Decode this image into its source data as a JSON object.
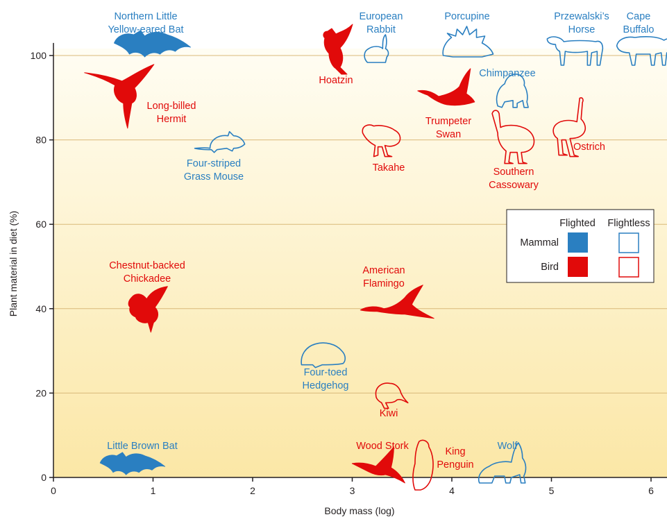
{
  "chart_data": {
    "type": "scatter",
    "title": "",
    "xlabel": "Body mass (log)",
    "ylabel": "Plant material in diet (%)",
    "xlim": [
      0,
      6.15
    ],
    "ylim": [
      0,
      102
    ],
    "x_ticks": [
      0,
      1,
      2,
      3,
      4,
      5,
      6
    ],
    "y_ticks": [
      0,
      20,
      40,
      60,
      80,
      100
    ],
    "grid": "horizontal",
    "background": "gradient cream (top) to light yellow (bottom)",
    "legend": {
      "placement": "right",
      "columns": [
        "Flighted",
        "Flightless"
      ],
      "rows": [
        "Mammal",
        "Bird"
      ]
    },
    "colors": {
      "mammal": "#2a7fc1",
      "bird": "#e10a0a"
    },
    "points": [
      {
        "label": "Northern Little Yellow-eared Bat",
        "x": 1.0,
        "y": 100,
        "group": "mammal",
        "flight": "flighted",
        "icon": "bat-icon"
      },
      {
        "label": "Long-billed Hermit",
        "x": 0.8,
        "y": 90,
        "group": "bird",
        "flight": "flighted",
        "icon": "hummingbird-icon"
      },
      {
        "label": "Four-striped Grass Mouse",
        "x": 1.6,
        "y": 79,
        "group": "mammal",
        "flight": "flightless",
        "icon": "mouse-icon"
      },
      {
        "label": "Hoatzin",
        "x": 2.85,
        "y": 100,
        "group": "bird",
        "flight": "flighted",
        "icon": "hoatzin-icon"
      },
      {
        "label": "European Rabbit",
        "x": 3.25,
        "y": 100,
        "group": "mammal",
        "flight": "flightless",
        "icon": "rabbit-icon"
      },
      {
        "label": "Porcupine",
        "x": 4.15,
        "y": 100,
        "group": "mammal",
        "flight": "flightless",
        "icon": "porcupine-icon"
      },
      {
        "label": "Przewalski’s Horse",
        "x": 5.25,
        "y": 100,
        "group": "mammal",
        "flight": "flightless",
        "icon": "horse-icon"
      },
      {
        "label": "Cape Buffalo",
        "x": 5.9,
        "y": 100,
        "group": "mammal",
        "flight": "flightless",
        "icon": "buffalo-icon"
      },
      {
        "label": "Chimpanzee",
        "x": 4.6,
        "y": 90,
        "group": "mammal",
        "flight": "flightless",
        "icon": "chimpanzee-icon"
      },
      {
        "label": "Trumpeter Swan",
        "x": 3.95,
        "y": 89,
        "group": "bird",
        "flight": "flighted",
        "icon": "swan-icon"
      },
      {
        "label": "Takahe",
        "x": 3.3,
        "y": 80,
        "group": "bird",
        "flight": "flightless",
        "icon": "takahe-icon"
      },
      {
        "label": "Southern Cassowary",
        "x": 4.6,
        "y": 80,
        "group": "bird",
        "flight": "flightless",
        "icon": "cassowary-icon"
      },
      {
        "label": "Ostrich",
        "x": 5.2,
        "y": 81,
        "group": "bird",
        "flight": "flightless",
        "icon": "ostrich-icon"
      },
      {
        "label": "Chestnut-backed Chickadee",
        "x": 0.95,
        "y": 40,
        "group": "bird",
        "flight": "flighted",
        "icon": "chickadee-icon"
      },
      {
        "label": "American Flamingo",
        "x": 3.5,
        "y": 40,
        "group": "bird",
        "flight": "flighted",
        "icon": "flamingo-icon"
      },
      {
        "label": "Four-toed Hedgehog",
        "x": 2.7,
        "y": 29,
        "group": "mammal",
        "flight": "flightless",
        "icon": "hedgehog-icon"
      },
      {
        "label": "Kiwi",
        "x": 3.35,
        "y": 20,
        "group": "bird",
        "flight": "flightless",
        "icon": "kiwi-icon"
      },
      {
        "label": "Little Brown Bat",
        "x": 0.8,
        "y": 1,
        "group": "mammal",
        "flight": "flighted",
        "icon": "bat-icon"
      },
      {
        "label": "Wood Stork",
        "x": 3.25,
        "y": 1,
        "group": "bird",
        "flight": "flighted",
        "icon": "stork-icon"
      },
      {
        "label": "King Penguin",
        "x": 3.7,
        "y": 0,
        "group": "bird",
        "flight": "flightless",
        "icon": "penguin-icon"
      },
      {
        "label": "Wolf",
        "x": 4.5,
        "y": 0,
        "group": "mammal",
        "flight": "flightless",
        "icon": "wolf-icon"
      }
    ]
  }
}
